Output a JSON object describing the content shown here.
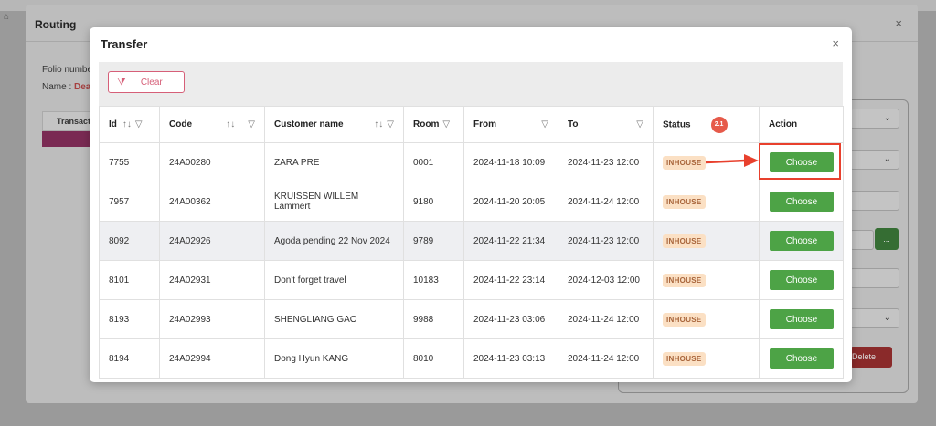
{
  "routing": {
    "title": "Routing",
    "close": "×",
    "folio_label": "Folio numbe",
    "name_label": "Name :",
    "name_value": "Dea",
    "transaction_header": "Transact",
    "delete_label": "Delete",
    "dots_label": "..."
  },
  "transfer": {
    "title": "Transfer",
    "close": "×",
    "clear_label": "Clear",
    "step_badge": "2.1",
    "columns": [
      "Id",
      "Code",
      "Customer name",
      "Room",
      "From",
      "To",
      "Status",
      "Action"
    ],
    "rows": [
      {
        "id": "7755",
        "code": "24A00280",
        "customer": "ZARA PRE",
        "room": "0001",
        "from": "2024-11-18 10:09",
        "to": "2024-11-23 12:00",
        "status": "INHOUSE",
        "action": "Choose"
      },
      {
        "id": "7957",
        "code": "24A00362",
        "customer": "KRUISSEN WILLEM Lammert",
        "room": "9180",
        "from": "2024-11-20 20:05",
        "to": "2024-11-24 12:00",
        "status": "INHOUSE",
        "action": "Choose"
      },
      {
        "id": "8092",
        "code": "24A02926",
        "customer": "Agoda pending 22 Nov 2024",
        "room": "9789",
        "from": "2024-11-22 21:34",
        "to": "2024-11-23 12:00",
        "status": "INHOUSE",
        "action": "Choose"
      },
      {
        "id": "8101",
        "code": "24A02931",
        "customer": "Don't forget travel",
        "room": "10183",
        "from": "2024-11-22 23:14",
        "to": "2024-12-03 12:00",
        "status": "INHOUSE",
        "action": "Choose"
      },
      {
        "id": "8193",
        "code": "24A02993",
        "customer": "SHENGLIANG GAO",
        "room": "9988",
        "from": "2024-11-23 03:06",
        "to": "2024-11-24 12:00",
        "status": "INHOUSE",
        "action": "Choose"
      },
      {
        "id": "8194",
        "code": "24A02994",
        "customer": "Dong Hyun KANG",
        "room": "8010",
        "from": "2024-11-23 03:13",
        "to": "2024-11-24 12:00",
        "status": "INHOUSE",
        "action": "Choose"
      }
    ]
  },
  "colors": {
    "choose_green": "#4da346",
    "badge_bg": "#fbe0c4",
    "clear_pink": "#d65f78",
    "annotation_red": "#e8402d"
  },
  "icons": {
    "sort": "sort-updown-icon",
    "filter": "filter-funnel-icon",
    "clear": "filter-clear-icon",
    "close": "close-icon"
  }
}
